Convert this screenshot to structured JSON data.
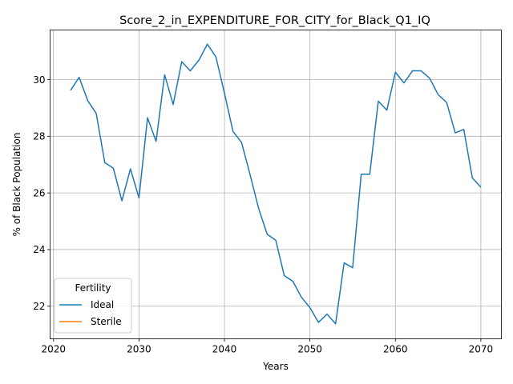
{
  "chart_data": {
    "type": "line",
    "title": "Score_2_in_EXPENDITURE_FOR_CITY_for_Black_Q1_IQ",
    "xlabel": "Years",
    "ylabel": "% of Black Population",
    "xlim": [
      2019.6,
      2072.4
    ],
    "ylim": [
      20.85,
      31.75
    ],
    "xticks": [
      2020,
      2030,
      2040,
      2050,
      2060,
      2070
    ],
    "yticks": [
      22,
      24,
      26,
      28,
      30
    ],
    "grid": true,
    "legend": {
      "title": "Fertility",
      "placement": "lower-left"
    },
    "series": [
      {
        "name": "Ideal",
        "color": "#1f77b4",
        "x": [
          2022,
          2023,
          2024,
          2025,
          2026,
          2027,
          2028,
          2029,
          2030,
          2031,
          2032,
          2033,
          2034,
          2035,
          2036,
          2037,
          2038,
          2039,
          2040,
          2041,
          2042,
          2043,
          2044,
          2045,
          2046,
          2047,
          2048,
          2049,
          2050,
          2051,
          2052,
          2053,
          2054,
          2055,
          2056,
          2057,
          2058,
          2059,
          2060,
          2061,
          2062,
          2063,
          2064,
          2065,
          2066,
          2067,
          2068,
          2069,
          2070
        ],
        "values": [
          29.62,
          30.08,
          29.26,
          28.8,
          27.07,
          26.87,
          25.72,
          26.85,
          25.82,
          28.65,
          27.82,
          30.17,
          29.12,
          30.63,
          30.31,
          30.68,
          31.25,
          30.8,
          29.52,
          28.17,
          27.78,
          26.64,
          25.45,
          24.54,
          24.33,
          23.08,
          22.88,
          22.32,
          21.95,
          21.43,
          21.72,
          21.38,
          23.53,
          23.36,
          26.66,
          26.66,
          29.24,
          28.92,
          30.26,
          29.88,
          30.31,
          30.31,
          30.05,
          29.47,
          29.19,
          28.12,
          28.24,
          26.53,
          26.2
        ]
      },
      {
        "name": "Sterile",
        "color": "#ff7f0e",
        "x": [],
        "values": []
      }
    ]
  }
}
